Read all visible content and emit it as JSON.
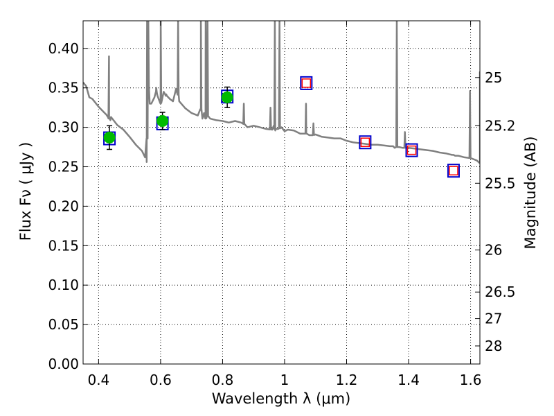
{
  "chart_data": {
    "type": "scatter",
    "xlabel": "Wavelength  λ (μm)",
    "ylabel": "Flux  Fν  ( μJy )",
    "y2label": "Magnitude (AB)",
    "xlim": [
      0.35,
      1.63
    ],
    "ylim": [
      0.0,
      0.435
    ],
    "grid": true,
    "x_ticks": [
      0.4,
      0.6,
      0.8,
      1.0,
      1.2,
      1.4,
      1.6
    ],
    "x_tick_labels": [
      "0.4",
      "0.6",
      "0.8",
      "1",
      "1.2",
      "1.4",
      "1.6"
    ],
    "y_ticks": [
      0.0,
      0.05,
      0.1,
      0.15,
      0.2,
      0.25,
      0.3,
      0.35,
      0.4
    ],
    "y_tick_labels": [
      "0.00",
      "0.05",
      "0.10",
      "0.15",
      "0.20",
      "0.25",
      "0.30",
      "0.35",
      "0.40"
    ],
    "mag_ticks": [
      {
        "label": "25",
        "flux": 0.3631
      },
      {
        "label": "25.2",
        "flux": 0.302
      },
      {
        "label": "25.5",
        "flux": 0.2291
      },
      {
        "label": "26",
        "flux": 0.1445
      },
      {
        "label": "26.5",
        "flux": 0.0912
      },
      {
        "label": "27",
        "flux": 0.0575
      },
      {
        "label": "28",
        "flux": 0.0229
      }
    ],
    "model_spectrum": {
      "color": "#808080",
      "x": [
        0.35,
        0.36,
        0.37,
        0.38,
        0.39,
        0.4,
        0.41,
        0.42,
        0.425,
        0.43,
        0.434,
        0.438,
        0.44,
        0.45,
        0.46,
        0.48,
        0.5,
        0.52,
        0.54,
        0.55,
        0.555,
        0.56,
        0.565,
        0.57,
        0.58,
        0.585,
        0.59,
        0.6,
        0.61,
        0.62,
        0.63,
        0.64,
        0.65,
        0.655,
        0.66,
        0.68,
        0.7,
        0.72,
        0.73,
        0.735,
        0.74,
        0.745,
        0.75,
        0.76,
        0.78,
        0.8,
        0.82,
        0.84,
        0.86,
        0.87,
        0.88,
        0.9,
        0.92,
        0.94,
        0.96,
        0.965,
        0.97,
        0.98,
        0.99,
        1.0,
        1.005,
        1.01,
        1.03,
        1.05,
        1.07,
        1.08,
        1.09,
        1.1,
        1.12,
        1.14,
        1.16,
        1.18,
        1.2,
        1.22,
        1.24,
        1.26,
        1.28,
        1.3,
        1.32,
        1.34,
        1.35,
        1.355,
        1.36,
        1.37,
        1.38,
        1.4,
        1.42,
        1.44,
        1.46,
        1.48,
        1.5,
        1.52,
        1.53,
        1.54,
        1.545,
        1.55,
        1.56,
        1.58,
        1.6,
        1.62,
        1.63
      ],
      "y": [
        0.357,
        0.352,
        0.338,
        0.336,
        0.331,
        0.326,
        0.322,
        0.318,
        0.316,
        0.313,
        0.311,
        0.309,
        0.313,
        0.308,
        0.303,
        0.297,
        0.288,
        0.278,
        0.27,
        0.262,
        0.256,
        0.355,
        0.33,
        0.33,
        0.338,
        0.345,
        0.34,
        0.33,
        0.345,
        0.34,
        0.336,
        0.333,
        0.349,
        0.345,
        0.333,
        0.324,
        0.318,
        0.315,
        0.323,
        0.311,
        0.318,
        0.311,
        0.315,
        0.311,
        0.309,
        0.308,
        0.306,
        0.308,
        0.306,
        0.304,
        0.3,
        0.302,
        0.3,
        0.298,
        0.297,
        0.302,
        0.296,
        0.298,
        0.3,
        0.295,
        0.296,
        0.297,
        0.296,
        0.292,
        0.292,
        0.29,
        0.29,
        0.291,
        0.288,
        0.287,
        0.286,
        0.286,
        0.283,
        0.281,
        0.28,
        0.279,
        0.278,
        0.278,
        0.277,
        0.276,
        0.276,
        0.274,
        0.275,
        0.275,
        0.274,
        0.274,
        0.273,
        0.272,
        0.271,
        0.27,
        0.268,
        0.267,
        0.266,
        0.265,
        0.265,
        0.264,
        0.264,
        0.262,
        0.261,
        0.258,
        0.255
      ],
      "spikes": [
        {
          "x": 0.4335,
          "peak": 0.39
        },
        {
          "x": 0.5565,
          "peak": 0.435
        },
        {
          "x": 0.5605,
          "peak": 0.435
        },
        {
          "x": 0.586,
          "peak": 0.35
        },
        {
          "x": 0.6005,
          "peak": 0.435
        },
        {
          "x": 0.6165,
          "peak": 0.34
        },
        {
          "x": 0.6565,
          "peak": 0.435
        },
        {
          "x": 0.73,
          "peak": 0.435
        },
        {
          "x": 0.7455,
          "peak": 0.435
        },
        {
          "x": 0.7515,
          "peak": 0.435
        },
        {
          "x": 0.8685,
          "peak": 0.33
        },
        {
          "x": 0.9545,
          "peak": 0.325
        },
        {
          "x": 0.9685,
          "peak": 0.435
        },
        {
          "x": 0.9835,
          "peak": 0.435
        },
        {
          "x": 1.069,
          "peak": 0.33
        },
        {
          "x": 1.093,
          "peak": 0.305
        },
        {
          "x": 1.362,
          "peak": 0.435
        },
        {
          "x": 1.388,
          "peak": 0.294
        },
        {
          "x": 1.598,
          "peak": 0.346
        },
        {
          "x": 1.63,
          "peak": 0.37
        }
      ]
    },
    "observed_points": {
      "color": "#00bb00",
      "x": [
        0.435,
        0.606,
        0.815
      ],
      "y": [
        0.287,
        0.308,
        0.338
      ],
      "yerr": [
        0.015,
        0.011,
        0.013
      ]
    },
    "model_boxes": {
      "color": "#0000cc",
      "x": [
        0.435,
        0.606,
        0.815,
        1.07,
        1.26,
        1.41,
        1.545
      ],
      "y": [
        0.286,
        0.305,
        0.339,
        0.356,
        0.281,
        0.271,
        0.245
      ]
    },
    "upper_boxes": {
      "color": "#ff0000",
      "x": [
        1.07,
        1.26,
        1.41,
        1.545
      ],
      "y": [
        0.356,
        0.281,
        0.271,
        0.245
      ]
    }
  }
}
